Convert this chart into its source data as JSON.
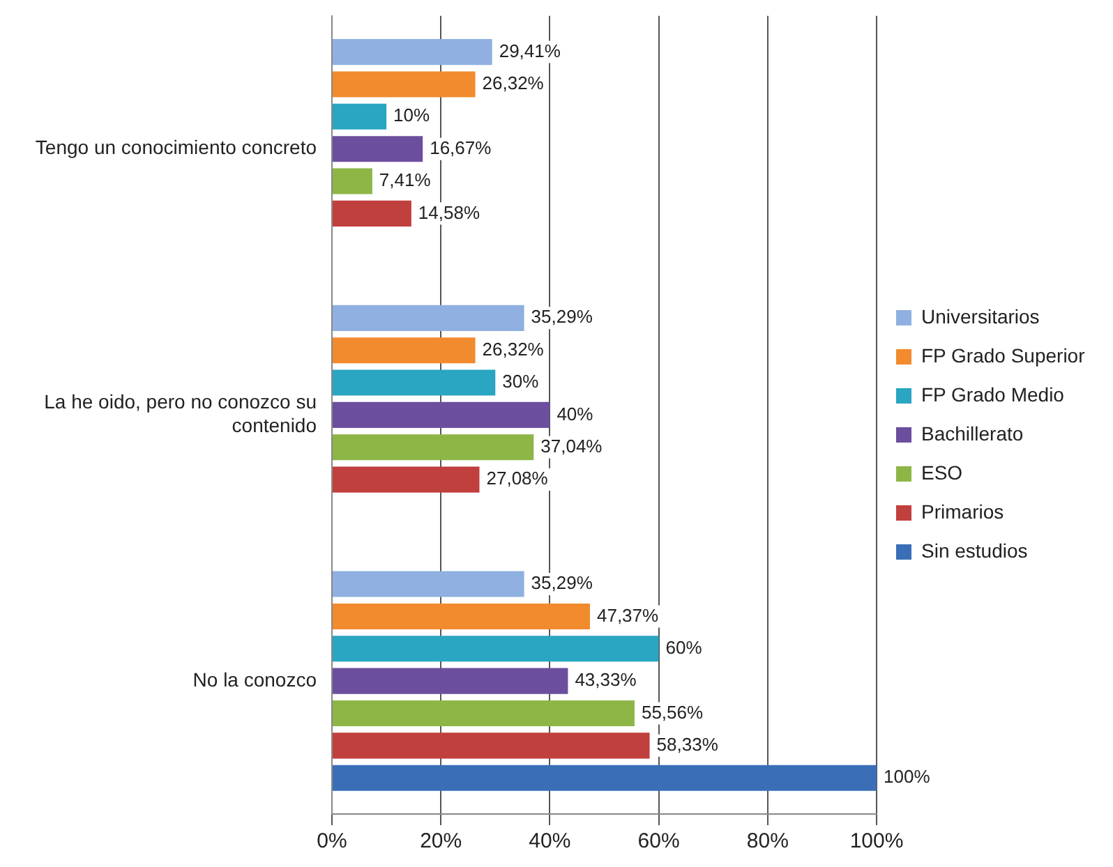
{
  "chart_data": {
    "type": "bar",
    "orientation": "horizontal",
    "categories": [
      "Tengo un conocimiento concreto",
      "La he oido, pero no conozco su contenido",
      "No la conozco"
    ],
    "series": [
      {
        "name": "Universitarios",
        "color": "#8fb0e0",
        "values": [
          29.41,
          35.29,
          35.29
        ],
        "value_labels": [
          "29,41%",
          "35,29%",
          "35,29%"
        ]
      },
      {
        "name": "FP Grado Superior",
        "color": "#f28a2e",
        "values": [
          26.32,
          26.32,
          47.37
        ],
        "value_labels": [
          "26,32%",
          "26,32%",
          "47,37%"
        ]
      },
      {
        "name": "FP Grado Medio",
        "color": "#2aa5c2",
        "values": [
          10,
          30,
          60
        ],
        "value_labels": [
          "10%",
          "30%",
          "60%"
        ]
      },
      {
        "name": "Bachillerato",
        "color": "#6b4f9e",
        "values": [
          16.67,
          40,
          43.33
        ],
        "value_labels": [
          "16,67%",
          "40%",
          "43,33%"
        ]
      },
      {
        "name": "ESO",
        "color": "#8db647",
        "values": [
          7.41,
          37.04,
          55.56
        ],
        "value_labels": [
          "7,41%",
          "37,04%",
          "55,56%"
        ]
      },
      {
        "name": "Primarios",
        "color": "#c0403e",
        "values": [
          14.58,
          27.08,
          58.33
        ],
        "value_labels": [
          "14,58%",
          "27,08%",
          "58,33%"
        ]
      },
      {
        "name": "Sin estudios",
        "color": "#3a6fb8",
        "values": [
          0,
          0,
          100
        ],
        "value_labels": [
          null,
          null,
          "100%"
        ]
      }
    ],
    "xlim": [
      0,
      100
    ],
    "xticks": [
      {
        "value": 0,
        "label": "0%"
      },
      {
        "value": 20,
        "label": "20%"
      },
      {
        "value": 40,
        "label": "40%"
      },
      {
        "value": 60,
        "label": "60%"
      },
      {
        "value": 80,
        "label": "80%"
      },
      {
        "value": 100,
        "label": "100%"
      }
    ],
    "grid": "x",
    "legend": "right"
  }
}
